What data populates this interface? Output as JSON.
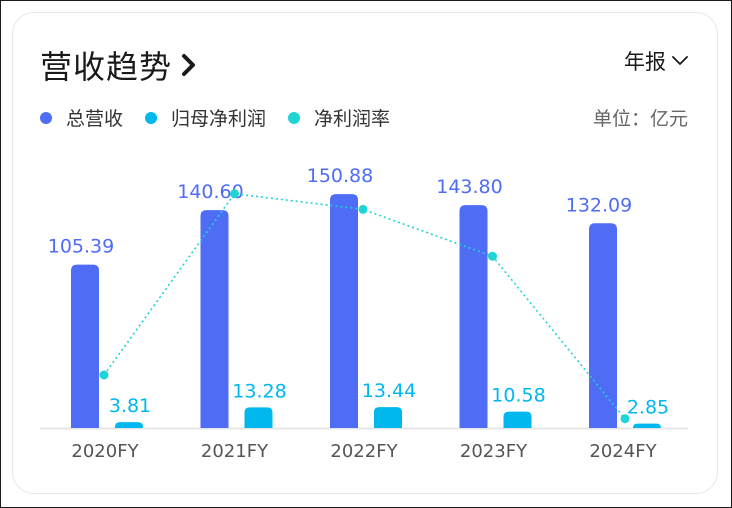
{
  "header": {
    "title": "营收趋势",
    "period_label": "年报"
  },
  "legend": [
    {
      "label": "总营收",
      "color": "#4f6cf5"
    },
    {
      "label": "归母净利润",
      "color": "#00b8ee"
    },
    {
      "label": "净利润率",
      "color": "#1fd4d4"
    }
  ],
  "unit_label": "单位：亿元",
  "chart_data": {
    "type": "bar",
    "categories": [
      "2020FY",
      "2021FY",
      "2022FY",
      "2023FY",
      "2024FY"
    ],
    "series": [
      {
        "name": "总营收",
        "type": "bar",
        "color": "#4f6cf5",
        "values": [
          105.39,
          140.6,
          150.88,
          143.8,
          132.09
        ]
      },
      {
        "name": "归母净利润",
        "type": "bar",
        "color": "#00b8ee",
        "values": [
          3.81,
          13.28,
          13.44,
          10.58,
          2.85
        ]
      },
      {
        "name": "净利润率",
        "type": "line",
        "style": "dotted",
        "color": "#1fd4d4",
        "values": [
          3.6,
          9.4,
          8.9,
          7.4,
          2.2
        ]
      }
    ],
    "ylim": [
      0,
      160
    ],
    "grid": false,
    "legend_position": "top-left"
  }
}
